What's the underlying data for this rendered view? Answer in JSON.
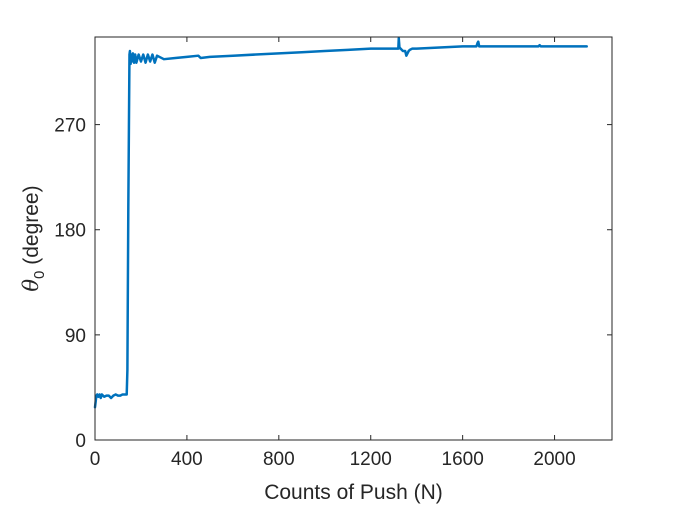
{
  "chart_data": {
    "type": "line",
    "title": "",
    "xlabel": "Counts of Push (N)",
    "ylabel": {
      "symbol": "θ",
      "subscript": "0",
      "text": " (degree)"
    },
    "xlim": [
      0,
      2250
    ],
    "ylim": [
      0,
      345
    ],
    "x_ticks": [
      0,
      400,
      800,
      1200,
      1600,
      2000
    ],
    "y_ticks": [
      0,
      90,
      180,
      270
    ],
    "grid": false,
    "legend": "none",
    "series": [
      {
        "color": "#0072BD",
        "x": [
          0,
          3,
          6,
          10,
          15,
          20,
          25,
          30,
          40,
          50,
          60,
          70,
          80,
          90,
          100,
          110,
          120,
          130,
          138,
          141,
          145,
          150,
          152,
          155,
          158,
          161,
          165,
          170,
          175,
          180,
          190,
          200,
          210,
          220,
          230,
          240,
          250,
          260,
          270,
          300,
          350,
          400,
          450,
          460,
          500,
          600,
          700,
          800,
          900,
          1000,
          1100,
          1200,
          1250,
          1300,
          1320,
          1322,
          1325,
          1330,
          1340,
          1350,
          1355,
          1360,
          1365,
          1370,
          1380,
          1400,
          1500,
          1600,
          1650,
          1660,
          1665,
          1668,
          1672,
          1680,
          1700,
          1800,
          1900,
          1930,
          1935,
          1940,
          1950,
          2000,
          2100,
          2140
        ],
        "y": [
          28,
          33,
          38,
          39,
          37,
          39,
          36,
          39,
          37,
          38,
          38,
          36,
          38,
          39,
          38,
          38,
          39,
          39,
          39,
          60,
          200,
          330,
          333,
          322,
          330,
          324,
          331,
          323,
          330,
          323,
          330,
          324,
          330,
          323,
          330,
          324,
          330,
          323,
          329,
          326,
          327,
          328,
          329,
          327,
          328,
          329,
          330,
          331,
          332,
          333,
          334,
          335,
          335,
          335,
          335,
          344,
          336,
          335,
          333,
          333,
          329,
          331,
          333,
          334,
          335,
          335,
          336,
          337,
          337,
          337,
          340,
          341,
          337,
          337,
          337,
          337,
          337,
          337,
          338,
          337,
          337,
          337,
          337,
          337
        ]
      }
    ]
  }
}
